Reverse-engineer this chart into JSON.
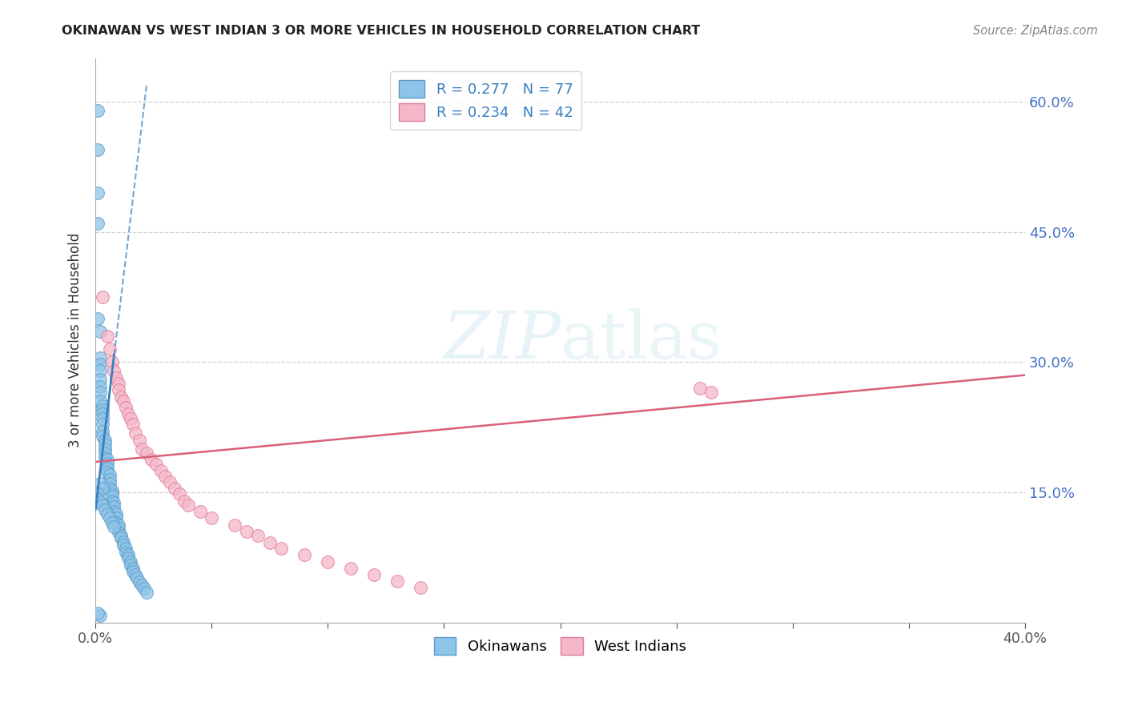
{
  "title": "OKINAWAN VS WEST INDIAN 3 OR MORE VEHICLES IN HOUSEHOLD CORRELATION CHART",
  "source": "Source: ZipAtlas.com",
  "ylabel": "3 or more Vehicles in Household",
  "xmin": 0.0,
  "xmax": 0.4,
  "ymin": 0.0,
  "ymax": 0.65,
  "yticks": [
    0.0,
    0.15,
    0.3,
    0.45,
    0.6
  ],
  "ytick_labels": [
    "0.0%",
    "15.0%",
    "30.0%",
    "45.0%",
    "60.0%"
  ],
  "blue_color": "#8ec4e8",
  "blue_edge_color": "#5b9ac8",
  "blue_line_color": "#3a7fc1",
  "pink_color": "#f5b8c8",
  "pink_edge_color": "#e07a9a",
  "pink_line_color": "#d9607a",
  "legend_label1": "R = 0.277   N = 77",
  "legend_label2": "R = 0.234   N = 42",
  "watermark_zip": "ZIP",
  "watermark_atlas": "atlas",
  "blue_x": [
    0.001,
    0.001,
    0.001,
    0.001,
    0.001,
    0.002,
    0.002,
    0.002,
    0.002,
    0.002,
    0.002,
    0.002,
    0.002,
    0.003,
    0.003,
    0.003,
    0.003,
    0.003,
    0.003,
    0.003,
    0.004,
    0.004,
    0.004,
    0.004,
    0.004,
    0.005,
    0.005,
    0.005,
    0.005,
    0.006,
    0.006,
    0.006,
    0.006,
    0.007,
    0.007,
    0.007,
    0.007,
    0.008,
    0.008,
    0.008,
    0.009,
    0.009,
    0.009,
    0.01,
    0.01,
    0.01,
    0.011,
    0.011,
    0.012,
    0.012,
    0.013,
    0.013,
    0.014,
    0.014,
    0.015,
    0.015,
    0.016,
    0.016,
    0.017,
    0.018,
    0.019,
    0.02,
    0.021,
    0.022,
    0.002,
    0.003,
    0.001,
    0.001,
    0.002,
    0.003,
    0.004,
    0.005,
    0.006,
    0.007,
    0.008,
    0.002,
    0.001
  ],
  "blue_y": [
    0.59,
    0.545,
    0.495,
    0.46,
    0.35,
    0.335,
    0.305,
    0.298,
    0.29,
    0.28,
    0.272,
    0.265,
    0.255,
    0.25,
    0.245,
    0.24,
    0.235,
    0.228,
    0.22,
    0.215,
    0.21,
    0.205,
    0.2,
    0.195,
    0.19,
    0.188,
    0.183,
    0.178,
    0.173,
    0.17,
    0.165,
    0.16,
    0.155,
    0.152,
    0.148,
    0.145,
    0.14,
    0.138,
    0.133,
    0.128,
    0.125,
    0.12,
    0.115,
    0.112,
    0.108,
    0.104,
    0.1,
    0.097,
    0.093,
    0.089,
    0.085,
    0.081,
    0.078,
    0.074,
    0.07,
    0.066,
    0.062,
    0.059,
    0.055,
    0.051,
    0.047,
    0.043,
    0.039,
    0.035,
    0.16,
    0.155,
    0.148,
    0.143,
    0.139,
    0.135,
    0.13,
    0.125,
    0.12,
    0.115,
    0.11,
    0.008,
    0.011
  ],
  "pink_x": [
    0.003,
    0.005,
    0.006,
    0.007,
    0.008,
    0.009,
    0.01,
    0.01,
    0.011,
    0.012,
    0.013,
    0.014,
    0.015,
    0.016,
    0.017,
    0.019,
    0.02,
    0.022,
    0.024,
    0.026,
    0.028,
    0.03,
    0.032,
    0.034,
    0.036,
    0.038,
    0.04,
    0.045,
    0.05,
    0.06,
    0.065,
    0.07,
    0.075,
    0.08,
    0.09,
    0.1,
    0.11,
    0.12,
    0.13,
    0.14,
    0.26,
    0.265
  ],
  "pink_y": [
    0.375,
    0.33,
    0.315,
    0.3,
    0.29,
    0.282,
    0.275,
    0.268,
    0.26,
    0.255,
    0.248,
    0.24,
    0.235,
    0.228,
    0.218,
    0.21,
    0.2,
    0.195,
    0.188,
    0.182,
    0.175,
    0.168,
    0.162,
    0.155,
    0.148,
    0.14,
    0.135,
    0.128,
    0.12,
    0.112,
    0.105,
    0.1,
    0.092,
    0.085,
    0.078,
    0.07,
    0.062,
    0.055,
    0.048,
    0.04,
    0.27,
    0.265
  ],
  "pink_line_x0": 0.0,
  "pink_line_x1": 0.4,
  "pink_line_y0": 0.185,
  "pink_line_y1": 0.285,
  "blue_line_x0": 0.0,
  "blue_line_x1": 0.022,
  "blue_line_y0": 0.13,
  "blue_line_y1": 0.62
}
